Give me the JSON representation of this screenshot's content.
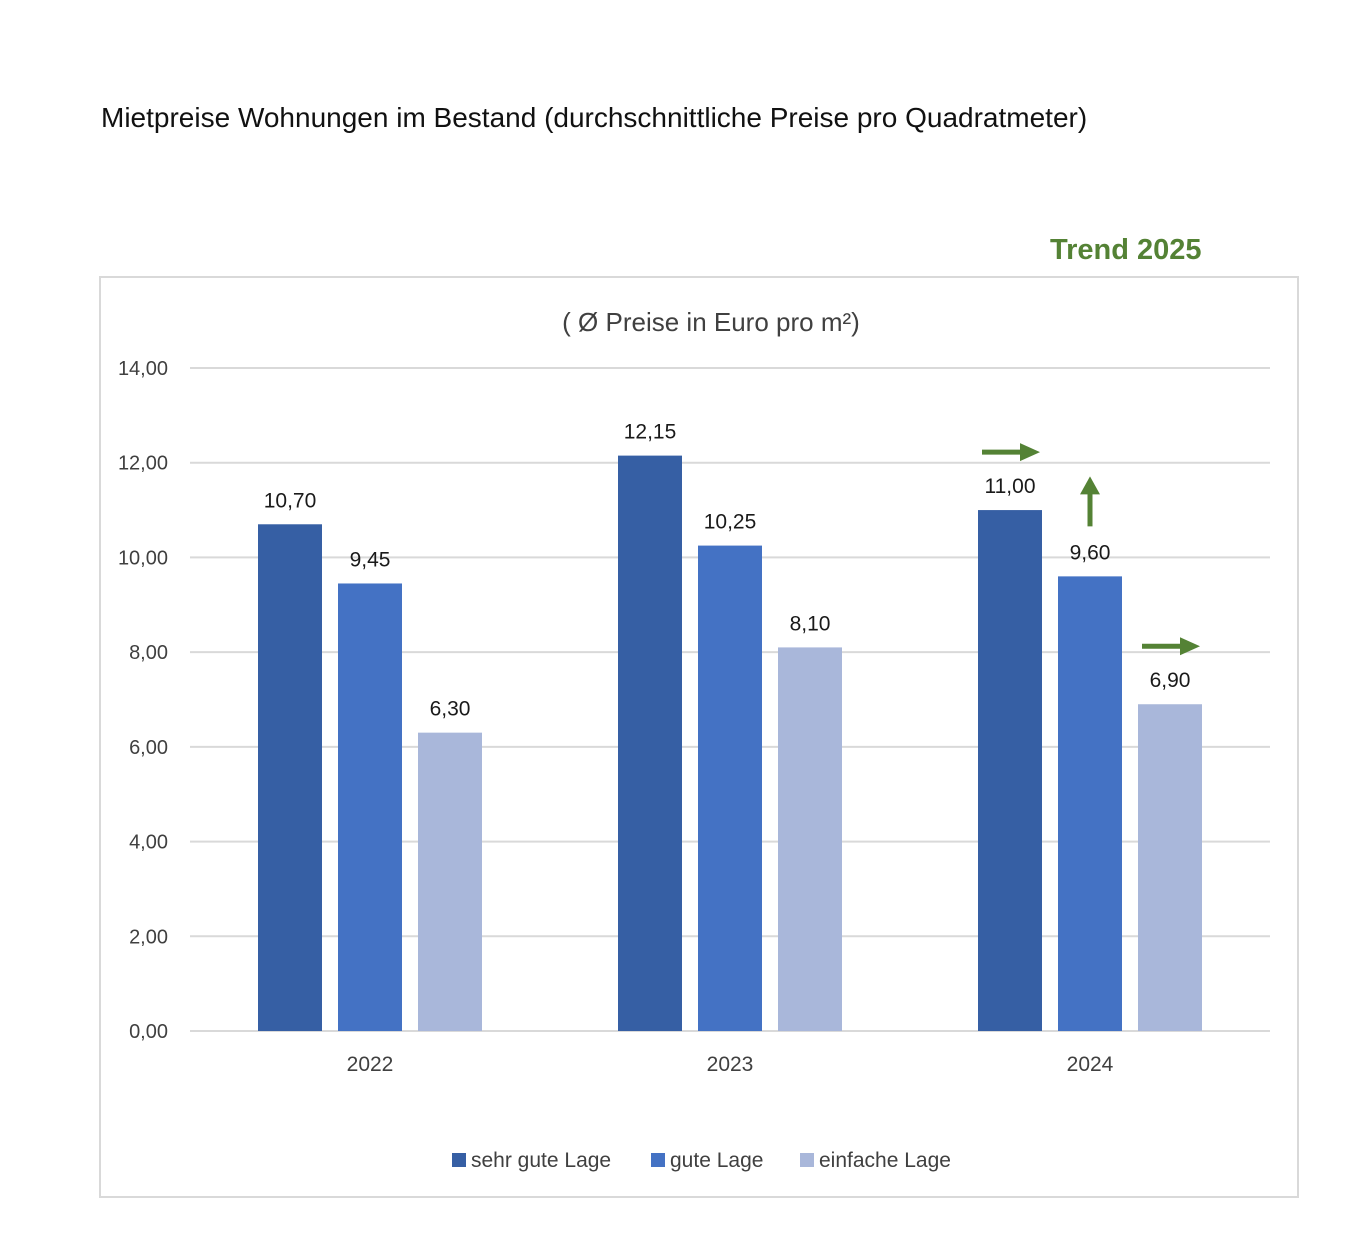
{
  "title": "Mietpreise Wohnungen im Bestand (durchschnittliche Preise pro Quadratmeter)",
  "trend_label": "Trend 2025",
  "chart_data": {
    "type": "bar",
    "subtitle": "( Ø Preise in Euro pro m²)",
    "categories": [
      "2022",
      "2023",
      "2024"
    ],
    "series": [
      {
        "name": "sehr gute Lage",
        "values": [
          10.7,
          12.15,
          11.0
        ],
        "labels": [
          "10,70",
          "12,15",
          "11,00"
        ],
        "color": "#365FA4"
      },
      {
        "name": "gute Lage",
        "values": [
          9.45,
          10.25,
          9.6
        ],
        "labels": [
          "9,45",
          "10,25",
          "9,60"
        ],
        "color": "#4472C4"
      },
      {
        "name": "einfache Lage",
        "values": [
          6.3,
          8.1,
          6.9
        ],
        "labels": [
          "6,30",
          "8,10",
          "6,90"
        ],
        "color": "#A9B7DA"
      }
    ],
    "ylim": [
      0,
      14
    ],
    "yticks": [
      0,
      2,
      4,
      6,
      8,
      10,
      12,
      14
    ],
    "ytick_labels": [
      "0,00",
      "2,00",
      "4,00",
      "6,00",
      "8,00",
      "10,00",
      "12,00",
      "14,00"
    ],
    "grid": true,
    "legend_position": "bottom",
    "trend_arrows": [
      {
        "category": "2024",
        "series": "sehr gute Lage",
        "direction": "right"
      },
      {
        "category": "2024",
        "series": "gute Lage",
        "direction": "up"
      },
      {
        "category": "2024",
        "series": "einfache Lage",
        "direction": "right"
      }
    ],
    "trend_color": "#548235"
  }
}
